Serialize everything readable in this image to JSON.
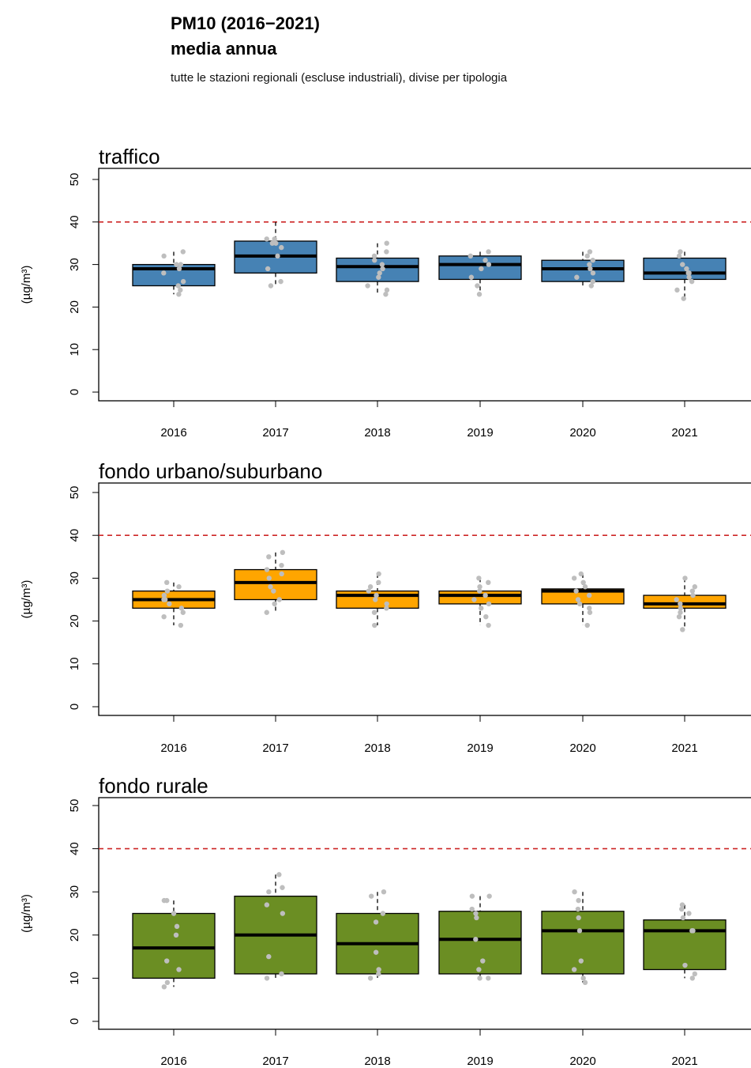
{
  "header": {
    "title_line1": "PM10 (2016−2021)",
    "title_line2": "media annua",
    "subtitle": "tutte le stazioni regionali (escluse industriali), divise per tipologia"
  },
  "chart_data": [
    {
      "type": "boxplot",
      "title": "traffico",
      "ylabel": "(µg/m³)",
      "ylim": [
        0,
        50
      ],
      "yticks": [
        0,
        10,
        20,
        30,
        40,
        50
      ],
      "limit_line": 40,
      "color": "#4682B4",
      "categories": [
        "2016",
        "2017",
        "2018",
        "2019",
        "2020",
        "2021"
      ],
      "boxes": [
        {
          "whisker_low": 23,
          "q1": 25,
          "median": 29,
          "q3": 30,
          "whisker_high": 33
        },
        {
          "whisker_low": 25,
          "q1": 28,
          "median": 32,
          "q3": 35.5,
          "whisker_high": 40
        },
        {
          "whisker_low": 23,
          "q1": 26,
          "median": 29.5,
          "q3": 31.5,
          "whisker_high": 35
        },
        {
          "whisker_low": 23,
          "q1": 26.5,
          "median": 30,
          "q3": 32,
          "whisker_high": 33
        },
        {
          "whisker_low": 25,
          "q1": 26,
          "median": 29,
          "q3": 31,
          "whisker_high": 33
        },
        {
          "whisker_low": 22,
          "q1": 26.5,
          "median": 28,
          "q3": 31.5,
          "whisker_high": 33
        }
      ],
      "points": [
        [
          23,
          24,
          25,
          26,
          28,
          29,
          30,
          30,
          32,
          33
        ],
        [
          25,
          26,
          29,
          32,
          34,
          35,
          35,
          36,
          36
        ],
        [
          23,
          24,
          25,
          27,
          28,
          29,
          30,
          31,
          32,
          33,
          35
        ],
        [
          23,
          25,
          27,
          29,
          30,
          31,
          32,
          33
        ],
        [
          25,
          26,
          27,
          28,
          29,
          30,
          31,
          32,
          33
        ],
        [
          22,
          24,
          26,
          27,
          28,
          28,
          29,
          30,
          32,
          33
        ]
      ]
    },
    {
      "type": "boxplot",
      "title": "fondo urbano/suburbano",
      "ylabel": "(µg/m³)",
      "ylim": [
        0,
        50
      ],
      "yticks": [
        0,
        10,
        20,
        30,
        40,
        50
      ],
      "limit_line": 40,
      "color": "#FFA500",
      "categories": [
        "2016",
        "2017",
        "2018",
        "2019",
        "2020",
        "2021"
      ],
      "boxes": [
        {
          "whisker_low": 19,
          "q1": 23,
          "median": 25,
          "q3": 27,
          "whisker_high": 29
        },
        {
          "whisker_low": 22,
          "q1": 25,
          "median": 29,
          "q3": 32,
          "whisker_high": 36
        },
        {
          "whisker_low": 19,
          "q1": 23,
          "median": 26,
          "q3": 27,
          "whisker_high": 31
        },
        {
          "whisker_low": 19,
          "q1": 24,
          "median": 26,
          "q3": 27,
          "whisker_high": 30
        },
        {
          "whisker_low": 19,
          "q1": 24,
          "median": 27,
          "q3": 27.5,
          "whisker_high": 31
        },
        {
          "whisker_low": 18,
          "q1": 23,
          "median": 24,
          "q3": 26,
          "whisker_high": 30
        }
      ],
      "points": [
        [
          19,
          21,
          22,
          23,
          24,
          25,
          25,
          26,
          27,
          28,
          29
        ],
        [
          22,
          24,
          25,
          27,
          28,
          30,
          31,
          32,
          33,
          35,
          36
        ],
        [
          19,
          22,
          23,
          24,
          25,
          26,
          27,
          28,
          29,
          31
        ],
        [
          19,
          21,
          23,
          24,
          25,
          26,
          27,
          28,
          29,
          30
        ],
        [
          19,
          22,
          23,
          24,
          25,
          26,
          27,
          28,
          29,
          30,
          31
        ],
        [
          18,
          21,
          22,
          23,
          24,
          25,
          26,
          27,
          28,
          30
        ]
      ]
    },
    {
      "type": "boxplot",
      "title": "fondo rurale",
      "ylabel": "(µg/m³)",
      "ylim": [
        0,
        50
      ],
      "yticks": [
        0,
        10,
        20,
        30,
        40,
        50
      ],
      "limit_line": 40,
      "color": "#6B8E23",
      "categories": [
        "2016",
        "2017",
        "2018",
        "2019",
        "2020",
        "2021"
      ],
      "boxes": [
        {
          "whisker_low": 8,
          "q1": 10,
          "median": 17,
          "q3": 25,
          "whisker_high": 28
        },
        {
          "whisker_low": 10,
          "q1": 11,
          "median": 20,
          "q3": 29,
          "whisker_high": 34
        },
        {
          "whisker_low": 10,
          "q1": 11,
          "median": 18,
          "q3": 25,
          "whisker_high": 30
        },
        {
          "whisker_low": 10,
          "q1": 11,
          "median": 19,
          "q3": 25.5,
          "whisker_high": 29
        },
        {
          "whisker_low": 9,
          "q1": 11,
          "median": 21,
          "q3": 25.5,
          "whisker_high": 30
        },
        {
          "whisker_low": 10,
          "q1": 12,
          "median": 21,
          "q3": 23.5,
          "whisker_high": 27
        }
      ],
      "points": [
        [
          8,
          9,
          12,
          14,
          20,
          22,
          25,
          28,
          28
        ],
        [
          10,
          11,
          15,
          25,
          27,
          30,
          31,
          34
        ],
        [
          10,
          11,
          12,
          16,
          23,
          25,
          29,
          30
        ],
        [
          10,
          10,
          12,
          14,
          19,
          24,
          25,
          26,
          29,
          29
        ],
        [
          9,
          10,
          12,
          14,
          21,
          24,
          26,
          28,
          30
        ],
        [
          10,
          11,
          13,
          21,
          21,
          24,
          25,
          26,
          27
        ]
      ]
    }
  ]
}
